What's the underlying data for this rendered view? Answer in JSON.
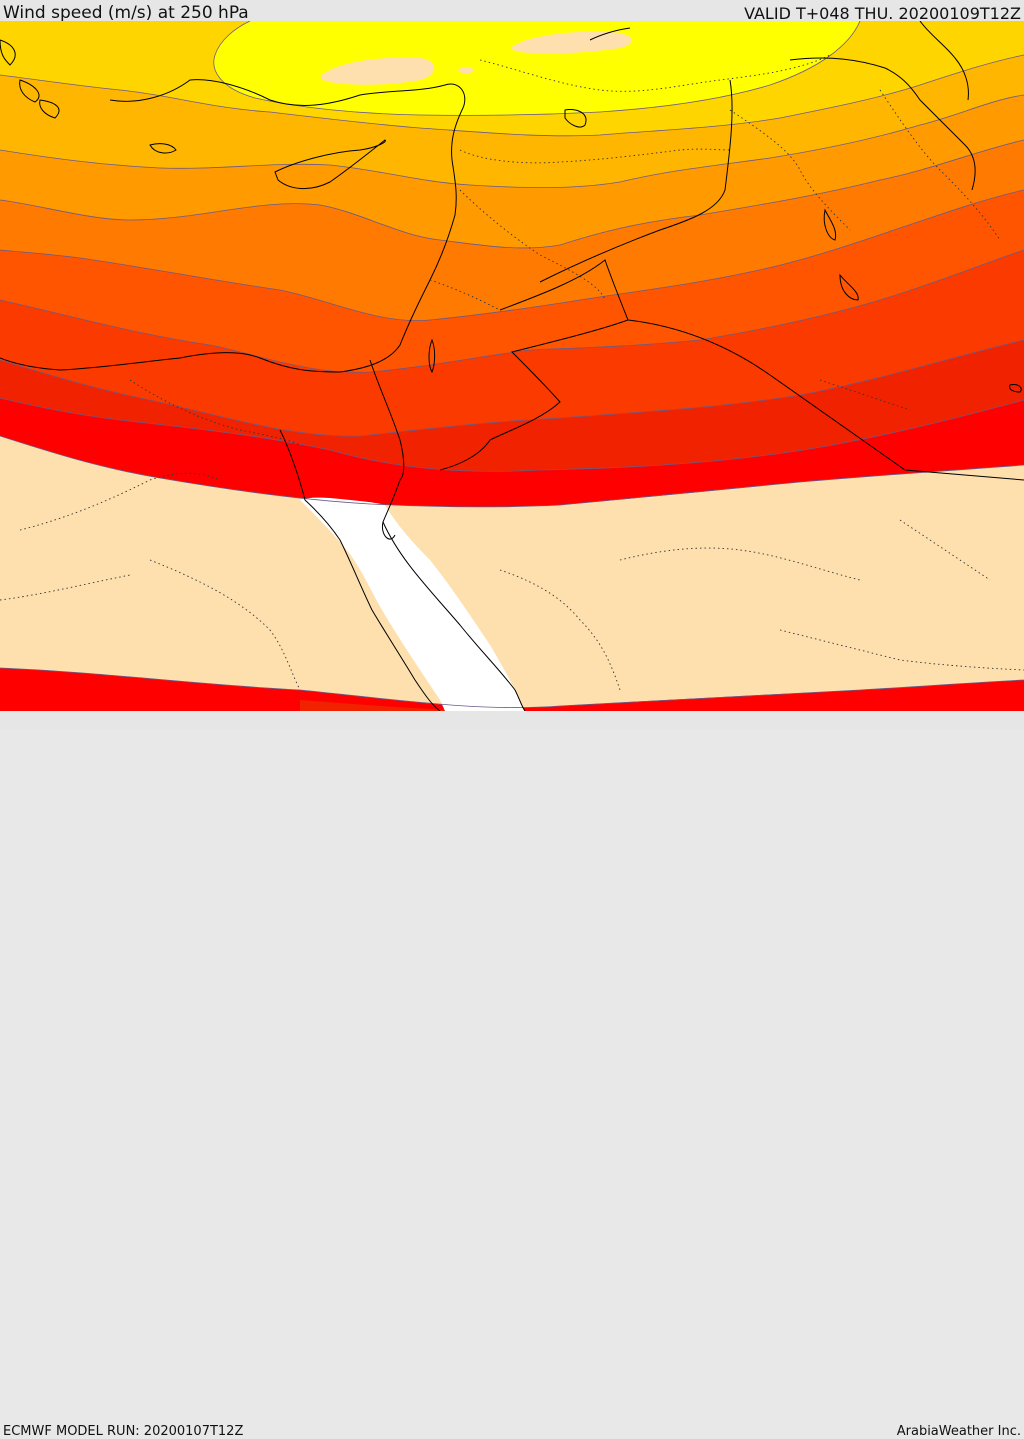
{
  "header": {
    "title": "Wind speed (m/s) at 250 hPa",
    "valid": "VALID T+048 THU. 20200109T12Z"
  },
  "footer": {
    "model_run": "ECMWF MODEL RUN: 20200107T12Z",
    "credit": "ArabiaWeather Inc."
  },
  "map": {
    "colors": {
      "below_threshold": "#fde0ae",
      "band_1": "#ffff00",
      "band_2": "#ffd500",
      "band_3": "#ffb600",
      "band_4": "#ff9a00",
      "band_5": "#ff7a00",
      "band_6": "#ff5500",
      "band_7": "#fb3a00",
      "band_8": "#f02200",
      "band_9": "#ff0000",
      "sea_unfilled": "#ffffff"
    }
  }
}
